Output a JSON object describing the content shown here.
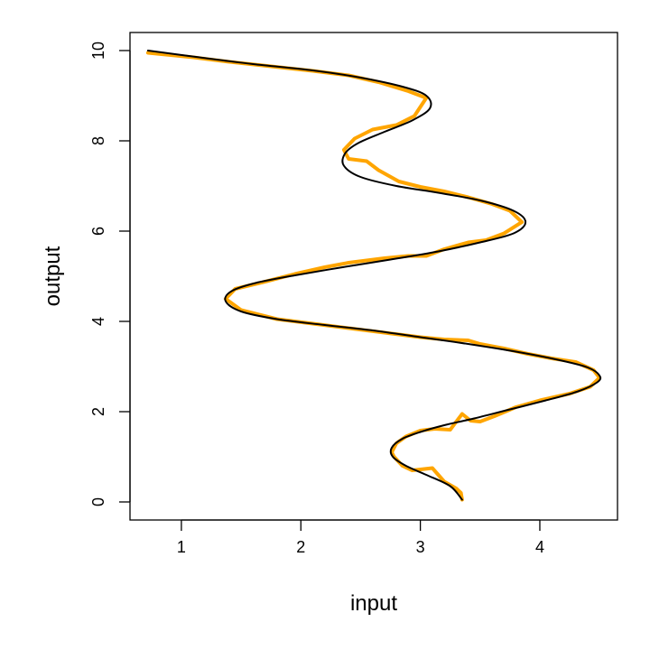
{
  "chart_data": {
    "type": "line",
    "title": "",
    "xlabel": "input",
    "ylabel": "output",
    "xlim": [
      0.57,
      4.65
    ],
    "ylim": [
      -0.4,
      10.4
    ],
    "x_ticks": [
      1,
      2,
      3,
      4
    ],
    "y_ticks": [
      0,
      2,
      4,
      6,
      8,
      10
    ],
    "x_tick_labels": [
      "1",
      "2",
      "3",
      "4"
    ],
    "y_tick_labels": [
      "0",
      "2",
      "4",
      "6",
      "8",
      "10"
    ],
    "grid": false,
    "legend": "none",
    "series": [
      {
        "color": "#FFA500",
        "style": "noisy",
        "points": [
          [
            3.35,
            0.05
          ],
          [
            3.34,
            0.2
          ],
          [
            3.3,
            0.3
          ],
          [
            3.2,
            0.45
          ],
          [
            3.15,
            0.6
          ],
          [
            3.1,
            0.75
          ],
          [
            3.0,
            0.72
          ],
          [
            2.93,
            0.7
          ],
          [
            2.85,
            0.8
          ],
          [
            2.78,
            1.0
          ],
          [
            2.76,
            1.1
          ],
          [
            2.8,
            1.3
          ],
          [
            2.88,
            1.45
          ],
          [
            3.0,
            1.58
          ],
          [
            3.12,
            1.62
          ],
          [
            3.25,
            1.6
          ],
          [
            3.35,
            1.95
          ],
          [
            3.42,
            1.8
          ],
          [
            3.5,
            1.78
          ],
          [
            3.62,
            1.9
          ],
          [
            3.8,
            2.1
          ],
          [
            4.0,
            2.25
          ],
          [
            4.25,
            2.4
          ],
          [
            4.42,
            2.55
          ],
          [
            4.5,
            2.75
          ],
          [
            4.45,
            2.92
          ],
          [
            4.3,
            3.1
          ],
          [
            4.1,
            3.18
          ],
          [
            3.9,
            3.28
          ],
          [
            3.7,
            3.4
          ],
          [
            3.5,
            3.5
          ],
          [
            3.4,
            3.58
          ],
          [
            3.2,
            3.6
          ],
          [
            3.0,
            3.65
          ],
          [
            2.7,
            3.75
          ],
          [
            2.4,
            3.85
          ],
          [
            2.1,
            3.95
          ],
          [
            1.8,
            4.05
          ],
          [
            1.5,
            4.25
          ],
          [
            1.37,
            4.5
          ],
          [
            1.45,
            4.72
          ],
          [
            1.7,
            4.88
          ],
          [
            1.95,
            5.05
          ],
          [
            2.2,
            5.2
          ],
          [
            2.4,
            5.3
          ],
          [
            2.7,
            5.4
          ],
          [
            2.9,
            5.45
          ],
          [
            3.05,
            5.45
          ],
          [
            3.2,
            5.6
          ],
          [
            3.4,
            5.75
          ],
          [
            3.55,
            5.8
          ],
          [
            3.7,
            5.95
          ],
          [
            3.85,
            6.2
          ],
          [
            3.75,
            6.45
          ],
          [
            3.6,
            6.6
          ],
          [
            3.4,
            6.75
          ],
          [
            3.2,
            6.88
          ],
          [
            3.0,
            6.98
          ],
          [
            2.82,
            7.1
          ],
          [
            2.65,
            7.35
          ],
          [
            2.55,
            7.55
          ],
          [
            2.4,
            7.6
          ],
          [
            2.36,
            7.8
          ],
          [
            2.45,
            8.05
          ],
          [
            2.6,
            8.25
          ],
          [
            2.8,
            8.35
          ],
          [
            2.95,
            8.55
          ],
          [
            3.05,
            8.95
          ],
          [
            2.9,
            9.1
          ],
          [
            2.65,
            9.3
          ],
          [
            2.4,
            9.45
          ],
          [
            2.1,
            9.55
          ],
          [
            1.75,
            9.65
          ],
          [
            1.4,
            9.75
          ],
          [
            1.1,
            9.85
          ],
          [
            0.72,
            9.95
          ]
        ]
      },
      {
        "color": "#000000",
        "style": "smooth",
        "points": [
          [
            3.35,
            0.05
          ],
          [
            3.25,
            0.35
          ],
          [
            3.05,
            0.6
          ],
          [
            2.88,
            0.8
          ],
          [
            2.77,
            1.0
          ],
          [
            2.76,
            1.2
          ],
          [
            2.85,
            1.4
          ],
          [
            3.0,
            1.55
          ],
          [
            3.2,
            1.7
          ],
          [
            3.45,
            1.85
          ],
          [
            3.75,
            2.05
          ],
          [
            4.05,
            2.25
          ],
          [
            4.32,
            2.45
          ],
          [
            4.48,
            2.65
          ],
          [
            4.5,
            2.8
          ],
          [
            4.4,
            2.98
          ],
          [
            4.15,
            3.15
          ],
          [
            3.8,
            3.33
          ],
          [
            3.4,
            3.5
          ],
          [
            3.0,
            3.65
          ],
          [
            2.6,
            3.8
          ],
          [
            2.2,
            3.92
          ],
          [
            1.8,
            4.05
          ],
          [
            1.5,
            4.22
          ],
          [
            1.37,
            4.45
          ],
          [
            1.42,
            4.67
          ],
          [
            1.62,
            4.85
          ],
          [
            1.95,
            5.02
          ],
          [
            2.35,
            5.2
          ],
          [
            2.75,
            5.37
          ],
          [
            3.15,
            5.55
          ],
          [
            3.5,
            5.75
          ],
          [
            3.78,
            5.95
          ],
          [
            3.88,
            6.2
          ],
          [
            3.78,
            6.45
          ],
          [
            3.5,
            6.68
          ],
          [
            3.15,
            6.85
          ],
          [
            2.8,
            7.0
          ],
          [
            2.5,
            7.2
          ],
          [
            2.36,
            7.45
          ],
          [
            2.37,
            7.72
          ],
          [
            2.48,
            7.95
          ],
          [
            2.7,
            8.2
          ],
          [
            2.93,
            8.45
          ],
          [
            3.08,
            8.72
          ],
          [
            3.05,
            9.0
          ],
          [
            2.85,
            9.2
          ],
          [
            2.5,
            9.4
          ],
          [
            2.1,
            9.56
          ],
          [
            1.6,
            9.7
          ],
          [
            1.15,
            9.85
          ],
          [
            0.72,
            10.0
          ]
        ]
      }
    ]
  }
}
